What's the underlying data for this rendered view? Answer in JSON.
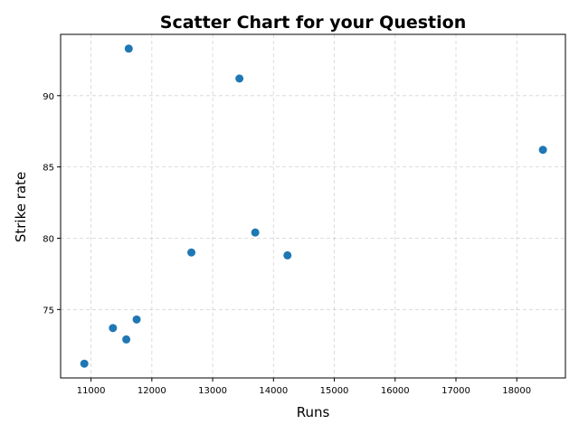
{
  "chart_data": {
    "type": "scatter",
    "title": "Scatter Chart for your Question",
    "xlabel": "Runs",
    "ylabel": "Strike rate",
    "xlim": [
      10500,
      18800
    ],
    "ylim": [
      70.2,
      94.3
    ],
    "xticks": [
      11000,
      12000,
      13000,
      14000,
      15000,
      16000,
      17000,
      18000
    ],
    "yticks": [
      75,
      80,
      85,
      90
    ],
    "grid": true,
    "marker_color": "#1f77b4",
    "points": [
      {
        "x": 11620,
        "y": 93.3
      },
      {
        "x": 13440,
        "y": 91.2
      },
      {
        "x": 18430,
        "y": 86.2
      },
      {
        "x": 13700,
        "y": 80.4
      },
      {
        "x": 12650,
        "y": 79.0
      },
      {
        "x": 14230,
        "y": 78.8
      },
      {
        "x": 11750,
        "y": 74.3
      },
      {
        "x": 11360,
        "y": 73.7
      },
      {
        "x": 11580,
        "y": 72.9
      },
      {
        "x": 10890,
        "y": 71.2
      }
    ]
  }
}
